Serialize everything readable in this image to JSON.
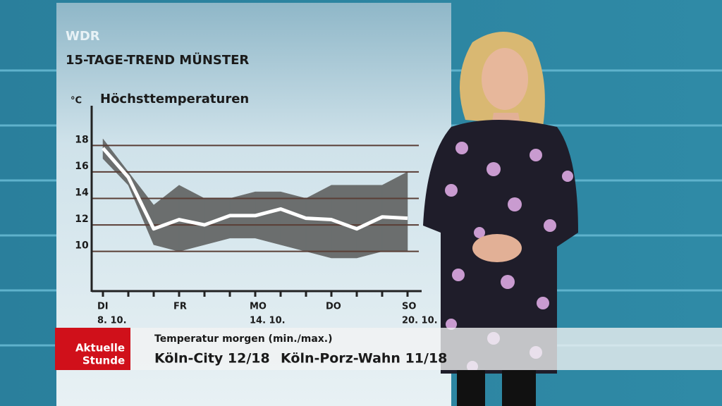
{
  "header": {
    "channel": "WDR",
    "title": "15-TAGE-TREND MÜNSTER"
  },
  "chart_data": {
    "type": "line",
    "title": "Höchsttemperaturen",
    "y_unit": "°C",
    "categories": [
      "DI",
      null,
      null,
      "FR",
      null,
      null,
      "MO",
      null,
      null,
      "DO",
      null,
      null,
      "SO"
    ],
    "category_dates": [
      "8. 10.",
      null,
      null,
      null,
      null,
      null,
      "14. 10.",
      null,
      null,
      null,
      null,
      null,
      "20. 10."
    ],
    "values": [
      17.8,
      15.6,
      11.7,
      12.4,
      12.0,
      12.7,
      12.7,
      13.2,
      12.5,
      12.4,
      11.7,
      12.6,
      12.5
    ],
    "color": "#ffffff",
    "band": {
      "low": [
        17,
        15,
        10.5,
        10,
        10.5,
        11,
        11,
        10.5,
        10,
        9.5,
        9.5,
        10,
        10
      ],
      "high": [
        18.5,
        16,
        13.5,
        15,
        14,
        14,
        14.5,
        14.5,
        14,
        15,
        15,
        15,
        16
      ],
      "color": "#6b6e6e"
    },
    "ylim": [
      7,
      21
    ],
    "yticks": [
      10,
      12,
      14,
      16,
      18
    ],
    "grid": true
  },
  "ticker": {
    "logo": [
      "Aktuelle",
      "Stunde"
    ],
    "heading": "Temperatur morgen (min./max.)",
    "items": [
      "Köln-City 12/18",
      "Köln-Porz-Wahn 11/18"
    ]
  }
}
